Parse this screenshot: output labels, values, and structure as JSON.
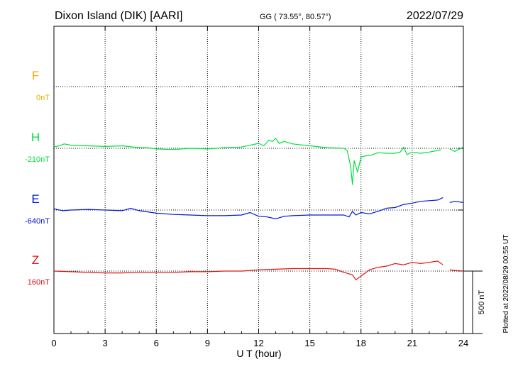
{
  "header": {
    "station": "Dixon Island (DIK)  [AARI]",
    "coords": "GG ( 73.55°,  80.57°)",
    "date": "2022/07/29"
  },
  "footer_note": "Plotted at 2022/08/29 00:55 UT",
  "scale_label": "500 nT",
  "chart_data": {
    "type": "line",
    "xlabel": "U T (hour)",
    "xlim": [
      0,
      24
    ],
    "xticks": [
      "0",
      "3",
      "6",
      "9",
      "12",
      "15",
      "18",
      "21",
      "24"
    ],
    "scale_bar_nT": 500,
    "series": [
      {
        "name": "F",
        "baseline_label": "0nT",
        "color": "#f0a800",
        "baseline_nT": 0,
        "x": [],
        "y": []
      },
      {
        "name": "H",
        "baseline_label": "-210nT",
        "color": "#00e03c",
        "baseline_nT": -210,
        "x": [
          0,
          0.3,
          0.6,
          1,
          2,
          3,
          4,
          5,
          5.5,
          6,
          7,
          8,
          9,
          10,
          11,
          11.5,
          12,
          12.3,
          12.6,
          12.8,
          13,
          13.2,
          13.5,
          14,
          15,
          16,
          17,
          17.2,
          17.4,
          17.5,
          17.6,
          17.8,
          18,
          18.3,
          18.6,
          19,
          19.5,
          20,
          20.3,
          20.5,
          20.7,
          21,
          21.5,
          22,
          22.4,
          22.7,
          23.2,
          23.5,
          24
        ],
        "y": [
          10,
          20,
          35,
          25,
          20,
          15,
          20,
          5,
          5,
          -5,
          -10,
          0,
          -5,
          5,
          10,
          25,
          40,
          20,
          65,
          55,
          80,
          40,
          55,
          35,
          20,
          5,
          0,
          -20,
          -150,
          -290,
          -100,
          -190,
          -70,
          -60,
          -55,
          -35,
          -40,
          -40,
          -30,
          10,
          -50,
          -30,
          -40,
          -30,
          -20,
          -10,
          -5,
          -25,
          10
        ],
        "gap": [
          22.8,
          23.2
        ]
      },
      {
        "name": "E",
        "baseline_label": "-640nT",
        "color": "#0018d8",
        "baseline_nT": -640,
        "x": [
          0,
          0.5,
          1,
          2,
          3,
          4,
          4.5,
          5,
          5.5,
          6,
          7,
          8,
          9,
          10,
          11,
          11.5,
          12,
          12.5,
          13,
          13.5,
          14,
          15,
          16,
          17,
          17.3,
          17.5,
          17.7,
          18,
          18.5,
          19,
          19.5,
          20,
          20.5,
          21,
          21.5,
          22,
          22.5,
          22.8,
          23.2,
          23.5,
          24
        ],
        "y": [
          10,
          -5,
          0,
          5,
          0,
          -5,
          15,
          -5,
          -15,
          -25,
          -35,
          -40,
          -45,
          -45,
          -40,
          -20,
          -50,
          -55,
          -70,
          -50,
          -45,
          -40,
          -40,
          -40,
          -55,
          -10,
          -40,
          -20,
          -30,
          -10,
          15,
          20,
          45,
          55,
          70,
          75,
          80,
          100,
          60,
          70,
          60
        ],
        "gap": [
          22.8,
          23.2
        ]
      },
      {
        "name": "Z",
        "baseline_label": "160nT",
        "color": "#e01010",
        "baseline_nT": 160,
        "x": [
          0,
          1,
          2,
          3,
          4,
          5,
          6,
          7,
          8,
          9,
          10,
          11,
          12,
          13,
          14,
          15,
          16,
          16.5,
          17,
          17.5,
          17.7,
          17.9,
          18.1,
          18.5,
          19,
          19.5,
          20,
          20.5,
          21,
          21.5,
          22,
          22.5,
          22.8,
          23.2,
          23.5,
          24
        ],
        "y": [
          0,
          -5,
          -10,
          -15,
          -15,
          -10,
          -10,
          -10,
          -5,
          -5,
          0,
          0,
          10,
          15,
          20,
          20,
          20,
          15,
          -10,
          -30,
          -70,
          -50,
          -30,
          10,
          30,
          40,
          60,
          50,
          70,
          60,
          70,
          80,
          50,
          10,
          5,
          0
        ],
        "gap": [
          22.8,
          23.2
        ]
      }
    ]
  }
}
